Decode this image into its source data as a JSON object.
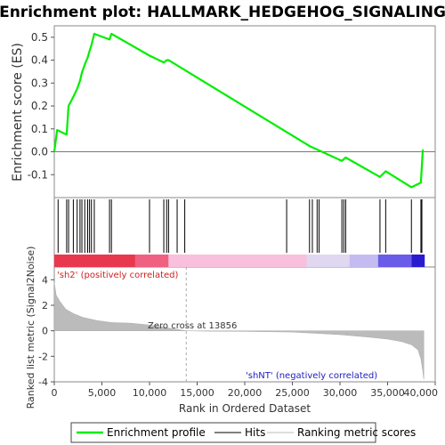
{
  "title": "Enrichment plot: HALLMARK_HEDGEHOG_SIGNALING",
  "colors": {
    "enrichment_line": "#00ee00",
    "hits": "#000000",
    "metric_fill": "#bbbbbb",
    "positive_label": "#d02020",
    "negative_label": "#2020c0",
    "zero_cross": "#aaaaaa"
  },
  "chart_data": [
    {
      "type": "line",
      "panel": "enrichment",
      "ylabel": "Enrichment score (ES)",
      "xlim": [
        0,
        40000
      ],
      "ylim": [
        -0.2,
        0.55
      ],
      "yticks": [
        -0.1,
        0.0,
        0.1,
        0.2,
        0.3,
        0.4,
        0.5
      ],
      "ytick_labels": [
        "-0.1",
        "0.0",
        "0.1",
        "0.2",
        "0.3",
        "0.4",
        "0.5"
      ],
      "grid": false,
      "series": [
        {
          "name": "Enrichment profile",
          "x": [
            0,
            300,
            1300,
            1400,
            1500,
            2000,
            2400,
            2700,
            2900,
            3200,
            3500,
            3700,
            3900,
            4200,
            5800,
            6000,
            10000,
            11500,
            11800,
            12000,
            26800,
            27600,
            30200,
            30600,
            34200,
            34800,
            37500,
            38500,
            38700
          ],
          "y": [
            0.0,
            0.095,
            0.075,
            0.14,
            0.2,
            0.24,
            0.275,
            0.31,
            0.345,
            0.38,
            0.41,
            0.44,
            0.465,
            0.515,
            0.49,
            0.515,
            0.42,
            0.39,
            0.4,
            0.4,
            0.025,
            0.01,
            -0.04,
            -0.025,
            -0.11,
            -0.085,
            -0.155,
            -0.135,
            0.01
          ]
        }
      ]
    },
    {
      "type": "scatter",
      "panel": "hits",
      "name": "Hits",
      "x": [
        400,
        1300,
        1500,
        2000,
        2400,
        2700,
        2900,
        3200,
        3500,
        3700,
        3900,
        4200,
        5800,
        6000,
        10000,
        11500,
        11800,
        12000,
        12900,
        13700,
        24400,
        26800,
        27100,
        27600,
        27800,
        30200,
        30400,
        30600,
        34200,
        34800,
        37500,
        38500,
        38600
      ]
    },
    {
      "type": "area",
      "panel": "ranked_metric",
      "name": "Ranking metric scores",
      "ylabel": "Ranked list metric (Signal2Noise)",
      "xlabel": "Rank in Ordered Dataset",
      "xlim": [
        0,
        40000
      ],
      "ylim": [
        -4,
        5
      ],
      "yticks": [
        -4,
        -2,
        0,
        2,
        4
      ],
      "ytick_labels": [
        "-4",
        "-2",
        "0",
        "2",
        "4"
      ],
      "xticks": [
        0,
        5000,
        10000,
        15000,
        20000,
        25000,
        30000,
        35000,
        40000
      ],
      "xtick_labels": [
        "0",
        "5,000",
        "10,000",
        "15,000",
        "20,000",
        "25,000",
        "30,000",
        "35,000",
        "40,000"
      ],
      "x": [
        0,
        200,
        600,
        1200,
        2000,
        3000,
        4500,
        6000,
        8000,
        10000,
        13856,
        16000,
        20000,
        25000,
        30000,
        33000,
        35000,
        36500,
        37500,
        38200,
        38500,
        38700,
        38800
      ],
      "values": [
        3.8,
        2.8,
        2.3,
        1.7,
        1.35,
        1.05,
        0.8,
        0.65,
        0.6,
        0.45,
        0.0,
        -0.03,
        -0.05,
        -0.1,
        -0.3,
        -0.5,
        -0.65,
        -0.85,
        -1.1,
        -1.5,
        -2.2,
        -3.2,
        -3.8
      ],
      "annotations": {
        "zero_cross": "Zero cross at 13856",
        "positive": "'sh2' (positively correlated)",
        "negative": "'shNT' (negatively correlated)"
      }
    }
  ],
  "legend": {
    "items": [
      "Enrichment profile",
      "Hits",
      "Ranking metric scores"
    ]
  }
}
